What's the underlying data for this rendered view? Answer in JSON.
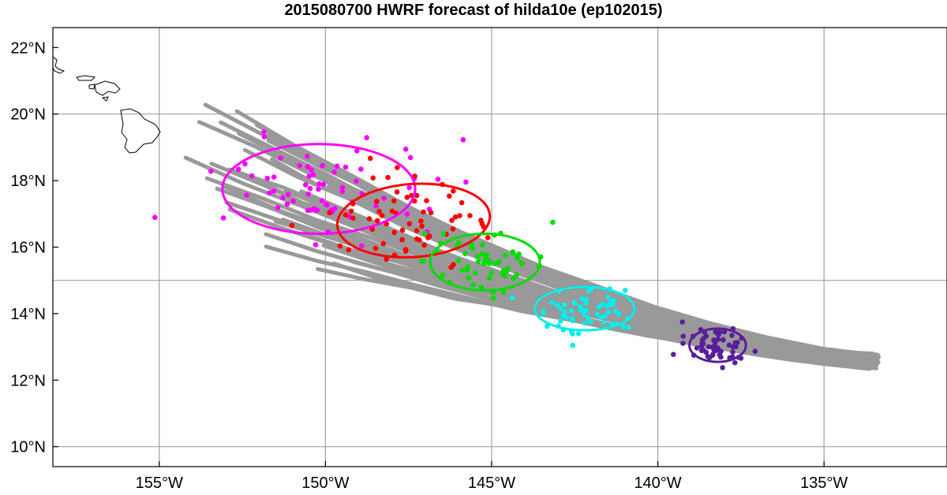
{
  "title": "2015080700 HWRF forecast of hilda10e (ep102015)",
  "colors": {
    "tracks": "#999999",
    "gridlines": "#a0a0a0",
    "coastline": "#000000",
    "magenta": "#ff00ff",
    "red": "#ff0000",
    "green": "#00dd00",
    "cyan": "#00eeee",
    "purple": "#5a1e9c"
  },
  "chart_data": {
    "type": "map",
    "lon_range": [
      -158.2,
      -131.3
    ],
    "lat_range": [
      9.4,
      22.6
    ],
    "lon_ticks": [
      {
        "value": -155,
        "label": "155°W"
      },
      {
        "value": -150,
        "label": "150°W"
      },
      {
        "value": -145,
        "label": "145°W"
      },
      {
        "value": -140,
        "label": "140°W"
      },
      {
        "value": -135,
        "label": "135°W"
      }
    ],
    "lat_ticks": [
      {
        "value": 10,
        "label": "10°N"
      },
      {
        "value": 12,
        "label": "12°N"
      },
      {
        "value": 14,
        "label": "14°N"
      },
      {
        "value": 16,
        "label": "16°N"
      },
      {
        "value": 18,
        "label": "18°N"
      },
      {
        "value": 20,
        "label": "20°N"
      },
      {
        "value": 22,
        "label": "22°N"
      }
    ],
    "grid_lon": [
      -155,
      -150,
      -145,
      -140,
      -135
    ],
    "grid_lat": [
      10,
      15,
      20
    ],
    "track_start": [
      -133.6,
      12.55
    ],
    "track_end_spread": {
      "lon": [
        -155.5,
        -148.5
      ],
      "lat": [
        15.3,
        20.1
      ]
    },
    "track_count": 40,
    "ellipses": [
      {
        "color_key": "magenta",
        "center": [
          -150.2,
          17.75
        ],
        "semi_axes_deg": [
          2.9,
          1.35
        ],
        "dot_count": 70,
        "tilt_deg": 0
      },
      {
        "color_key": "red",
        "center": [
          -147.35,
          16.8
        ],
        "semi_axes_deg": [
          2.3,
          1.1
        ],
        "dot_count": 65,
        "tilt_deg": -4
      },
      {
        "color_key": "green",
        "center": [
          -145.2,
          15.55
        ],
        "semi_axes_deg": [
          1.65,
          0.85
        ],
        "dot_count": 60,
        "tilt_deg": 0
      },
      {
        "color_key": "cyan",
        "center": [
          -142.2,
          14.15
        ],
        "semi_axes_deg": [
          1.5,
          0.65
        ],
        "dot_count": 60,
        "tilt_deg": 0
      },
      {
        "color_key": "purple",
        "center": [
          -138.2,
          13.05
        ],
        "semi_axes_deg": [
          0.85,
          0.5
        ],
        "dot_count": 60,
        "tilt_deg": 0
      }
    ]
  }
}
